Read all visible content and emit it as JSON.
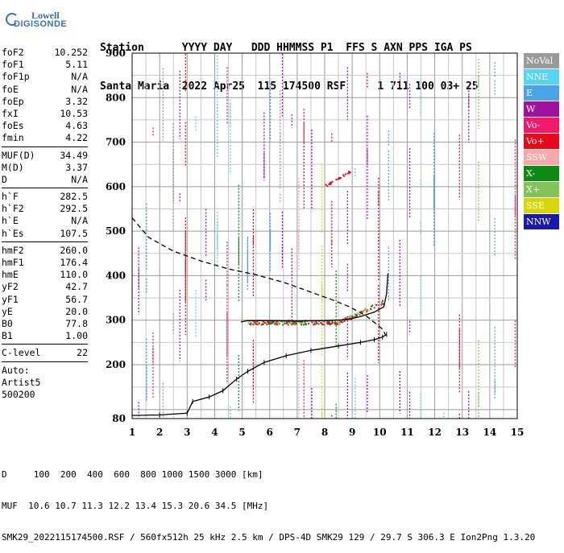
{
  "logo": {
    "line1": "Lowell",
    "line2": "DIGISONDE"
  },
  "header": {
    "line1": "Station      YYYY DAY   DDD HHMMSS P1  FFS S AXN PPS IGA PS",
    "line2": "Santa Maria  2022 Apr25  115 174500 RSF     1 711 100 03+ 25"
  },
  "params": {
    "group1": [
      {
        "k": "foF2",
        "v": "10.252"
      },
      {
        "k": "foF1",
        "v": "5.11"
      },
      {
        "k": "foF1p",
        "v": "N/A"
      },
      {
        "k": "foE",
        "v": "N/A"
      },
      {
        "k": "foEp",
        "v": "3.32"
      },
      {
        "k": "fxI",
        "v": "10.53"
      },
      {
        "k": "foEs",
        "v": "4.63"
      },
      {
        "k": "fmin",
        "v": "4.22"
      }
    ],
    "group2": [
      {
        "k": "MUF(D)",
        "v": "34.49"
      },
      {
        "k": "M(D)",
        "v": "3.37"
      },
      {
        "k": "D",
        "v": "N/A"
      }
    ],
    "group3": [
      {
        "k": "h`F",
        "v": "282.5"
      },
      {
        "k": "h`F2",
        "v": "292.5"
      },
      {
        "k": "h`E",
        "v": "N/A"
      },
      {
        "k": "h`Es",
        "v": "107.5"
      }
    ],
    "group4": [
      {
        "k": "hmF2",
        "v": "260.0"
      },
      {
        "k": "hmF1",
        "v": "176.4"
      },
      {
        "k": "hmE",
        "v": "110.0"
      },
      {
        "k": "yF2",
        "v": "42.7"
      },
      {
        "k": "yF1",
        "v": "56.7"
      },
      {
        "k": "yE",
        "v": "20.0"
      },
      {
        "k": "B0",
        "v": "77.8"
      },
      {
        "k": "B1",
        "v": "1.00"
      }
    ],
    "group5": [
      {
        "k": "C-level",
        "v": "22"
      }
    ],
    "auto": [
      "Auto:",
      "Artist5",
      "500200"
    ]
  },
  "legend": [
    {
      "label": "NoVal",
      "color": "#9a9a9a"
    },
    {
      "label": "NNE",
      "color": "#57d3f3"
    },
    {
      "label": "E",
      "color": "#4aa3e6"
    },
    {
      "label": "W",
      "color": "#a0129e"
    },
    {
      "label": "Vo-",
      "color": "#f2196a"
    },
    {
      "label": "Vo+",
      "color": "#e8081c"
    },
    {
      "label": "SSW",
      "color": "#f5a9a9"
    },
    {
      "label": "X-",
      "color": "#0c8a14"
    },
    {
      "label": "X+",
      "color": "#84c25a"
    },
    {
      "label": "SSE",
      "color": "#d6d60a"
    },
    {
      "label": "NNW",
      "color": "#1a1aa8"
    }
  ],
  "chart_data": {
    "type": "scatter",
    "x_ticks": [
      "1",
      "2",
      "3",
      "4",
      "5",
      "6",
      "7",
      "8",
      "9",
      "10",
      "11",
      "12",
      "13",
      "14",
      "15"
    ],
    "y_ticks": [
      "900",
      "800",
      "700",
      "600",
      "500",
      "400",
      "300",
      "200",
      "80"
    ],
    "xlim": [
      1,
      15
    ],
    "ylim": [
      80,
      900
    ],
    "grid": true,
    "traces": {
      "profile_solid_upper": [
        [
          4.95,
          296
        ],
        [
          5.2,
          299
        ],
        [
          6,
          299
        ],
        [
          7,
          298
        ],
        [
          8,
          299
        ],
        [
          8.8,
          301
        ],
        [
          9.3,
          308
        ],
        [
          9.8,
          318
        ],
        [
          10.15,
          330
        ],
        [
          10.25,
          360
        ],
        [
          10.3,
          405
        ]
      ],
      "profile_solid_lower": [
        [
          1.0,
          87
        ],
        [
          2,
          88
        ],
        [
          3,
          92
        ],
        [
          3.2,
          118
        ],
        [
          3.8,
          128
        ],
        [
          4.3,
          142
        ],
        [
          4.8,
          168
        ],
        [
          5.2,
          185
        ],
        [
          5.8,
          205
        ],
        [
          6.6,
          220
        ],
        [
          7.5,
          232
        ],
        [
          8.5,
          242
        ],
        [
          9.3,
          250
        ],
        [
          9.8,
          256
        ],
        [
          10.1,
          262
        ],
        [
          10.25,
          268
        ]
      ],
      "dashed_profile": [
        [
          1,
          530
        ],
        [
          1.6,
          486
        ],
        [
          2.5,
          455
        ],
        [
          3.5,
          433
        ],
        [
          4.5,
          415
        ],
        [
          5.5,
          402
        ],
        [
          6.5,
          385
        ],
        [
          7.5,
          363
        ],
        [
          8.3,
          345
        ],
        [
          8.9,
          330
        ],
        [
          9.5,
          310
        ],
        [
          10.1,
          280
        ],
        [
          10.2,
          268
        ]
      ]
    }
  },
  "footer": {
    "line1": "D     100  200  400  600  800 1000 1500 3000 [km]",
    "line2": "MUF  10.6 10.7 11.3 12.2 13.4 15.3 20.6 34.5 [MHz]",
    "line3": "SMK29_2022115174500.RSF / 560fx512h 25 kHz 2.5 km / DPS-4D SMK29 129 / 29.7 S 306.3 E Ion2Png 1.3.20"
  }
}
